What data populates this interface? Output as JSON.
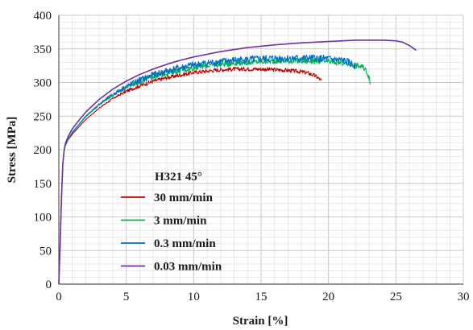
{
  "chart_data": {
    "type": "line",
    "xlabel": "Strain [%]",
    "ylabel": "Stress [MPa]",
    "xlim": [
      0,
      30
    ],
    "ylim": [
      0,
      400
    ],
    "xticks": [
      0,
      5,
      10,
      15,
      20,
      25,
      30
    ],
    "yticks": [
      0,
      50,
      100,
      150,
      200,
      250,
      300,
      350,
      400
    ],
    "grid": "major and minor",
    "legend_title": "H321 45°",
    "legend_position": "center-left",
    "series": [
      {
        "name": "30 mm/min",
        "color": "#c00000",
        "noisy": true,
        "x": [
          0,
          0.1,
          0.2,
          0.3,
          0.4,
          0.5,
          0.7,
          1,
          1.5,
          2,
          3,
          4,
          5,
          6,
          7,
          8,
          9,
          10,
          11,
          12,
          13,
          14,
          15,
          16,
          17,
          18,
          18.5,
          19,
          19.3,
          19.5
        ],
        "y": [
          0,
          60,
          130,
          180,
          200,
          207,
          215,
          223,
          234,
          245,
          262,
          276,
          287,
          295,
          302,
          307,
          311,
          315,
          317,
          319,
          320,
          320,
          320,
          319,
          318,
          316,
          314,
          310,
          306,
          302
        ]
      },
      {
        "name": "3 mm/min",
        "color": "#00b050",
        "noisy": true,
        "x": [
          0,
          0.1,
          0.2,
          0.3,
          0.4,
          0.5,
          0.7,
          1,
          1.5,
          2,
          3,
          4,
          5,
          6,
          7,
          8,
          9,
          10,
          11,
          12,
          13,
          14,
          15,
          16,
          17,
          18,
          19,
          20,
          21,
          22,
          22.5,
          22.8,
          23,
          23.1
        ],
        "y": [
          0,
          60,
          130,
          180,
          200,
          207,
          216,
          225,
          237,
          249,
          267,
          281,
          293,
          302,
          309,
          314,
          318,
          322,
          325,
          327,
          329,
          330,
          331,
          332,
          332,
          332,
          332,
          331,
          329,
          326,
          323,
          318,
          308,
          296
        ]
      },
      {
        "name": "0.3 mm/min",
        "color": "#0070c0",
        "noisy": true,
        "x": [
          0,
          0.1,
          0.2,
          0.3,
          0.4,
          0.5,
          0.7,
          1,
          1.5,
          2,
          3,
          4,
          5,
          6,
          7,
          8,
          9,
          10,
          11,
          12,
          13,
          14,
          15,
          16,
          17,
          18,
          19,
          20,
          21,
          21.5,
          22
        ],
        "y": [
          0,
          60,
          130,
          180,
          200,
          207,
          216,
          226,
          238,
          250,
          268,
          282,
          294,
          303,
          311,
          317,
          322,
          326,
          329,
          331,
          333,
          334,
          335,
          336,
          336,
          336,
          336,
          335,
          333,
          330,
          325
        ]
      },
      {
        "name": "0.03 mm/min",
        "color": "#7030a0",
        "noisy": false,
        "x": [
          0,
          0.1,
          0.2,
          0.3,
          0.4,
          0.5,
          0.7,
          1,
          1.5,
          2,
          3,
          4,
          5,
          6,
          7,
          8,
          9,
          10,
          12,
          14,
          16,
          18,
          20,
          22,
          23,
          24,
          25,
          25.5,
          26,
          26.5
        ],
        "y": [
          0,
          60,
          130,
          180,
          200,
          210,
          220,
          231,
          244,
          256,
          275,
          290,
          302,
          312,
          320,
          327,
          333,
          338,
          346,
          352,
          356,
          359,
          361,
          363,
          363,
          363,
          362,
          360,
          355,
          348
        ]
      }
    ]
  }
}
